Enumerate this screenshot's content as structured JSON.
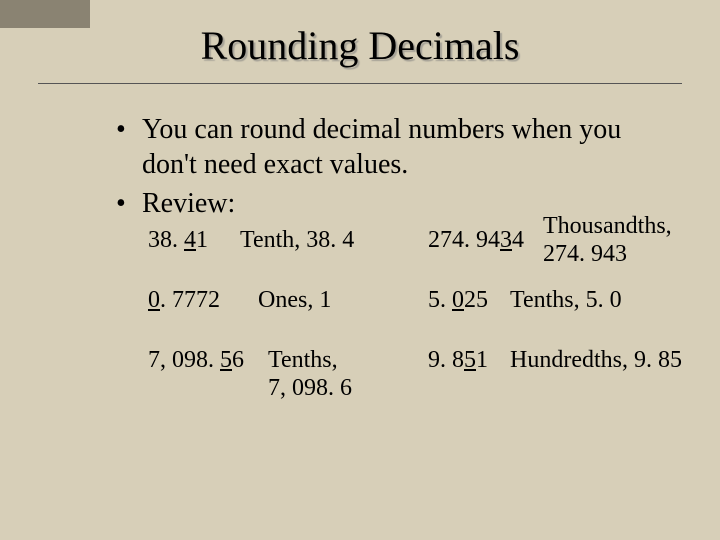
{
  "colors": {
    "background": "#d7cfb8",
    "shadow_tab": "#8a8372",
    "text": "#000000",
    "rule": "#555555"
  },
  "typography": {
    "title_fontsize_pt": 30,
    "body_fontsize_pt": 21,
    "example_fontsize_pt": 18,
    "font_family": "Times New Roman"
  },
  "slide": {
    "title": "Rounding Decimals",
    "bullets": [
      "You can round decimal numbers when you don't need exact values.",
      "Review:"
    ],
    "examples": {
      "rows": [
        {
          "left_num_pre": "38. ",
          "left_num_u": "4",
          "left_num_post": "1",
          "left_ans": "Tenth, 38. 4",
          "right_num_pre": "274. 94",
          "right_num_u": "3",
          "right_num_post": "4",
          "right_ans_l1": "Thousandths,",
          "right_ans_l2": "274. 943"
        },
        {
          "left_num_pre": "",
          "left_num_u": "0",
          "left_num_post": ". 7772",
          "left_ans": "Ones, 1",
          "right_num_pre": "5. ",
          "right_num_u": "0",
          "right_num_post": "25",
          "right_ans": "Tenths, 5. 0"
        },
        {
          "left_num_pre": "7, 098. ",
          "left_num_u": "5",
          "left_num_post": "6",
          "left_ans_l1": "Tenths,",
          "left_ans_l2": "7, 098. 6",
          "right_num_pre": "9. 8",
          "right_num_u": "5",
          "right_num_post": "1",
          "right_ans": "Hundredths, 9. 85"
        }
      ]
    }
  }
}
